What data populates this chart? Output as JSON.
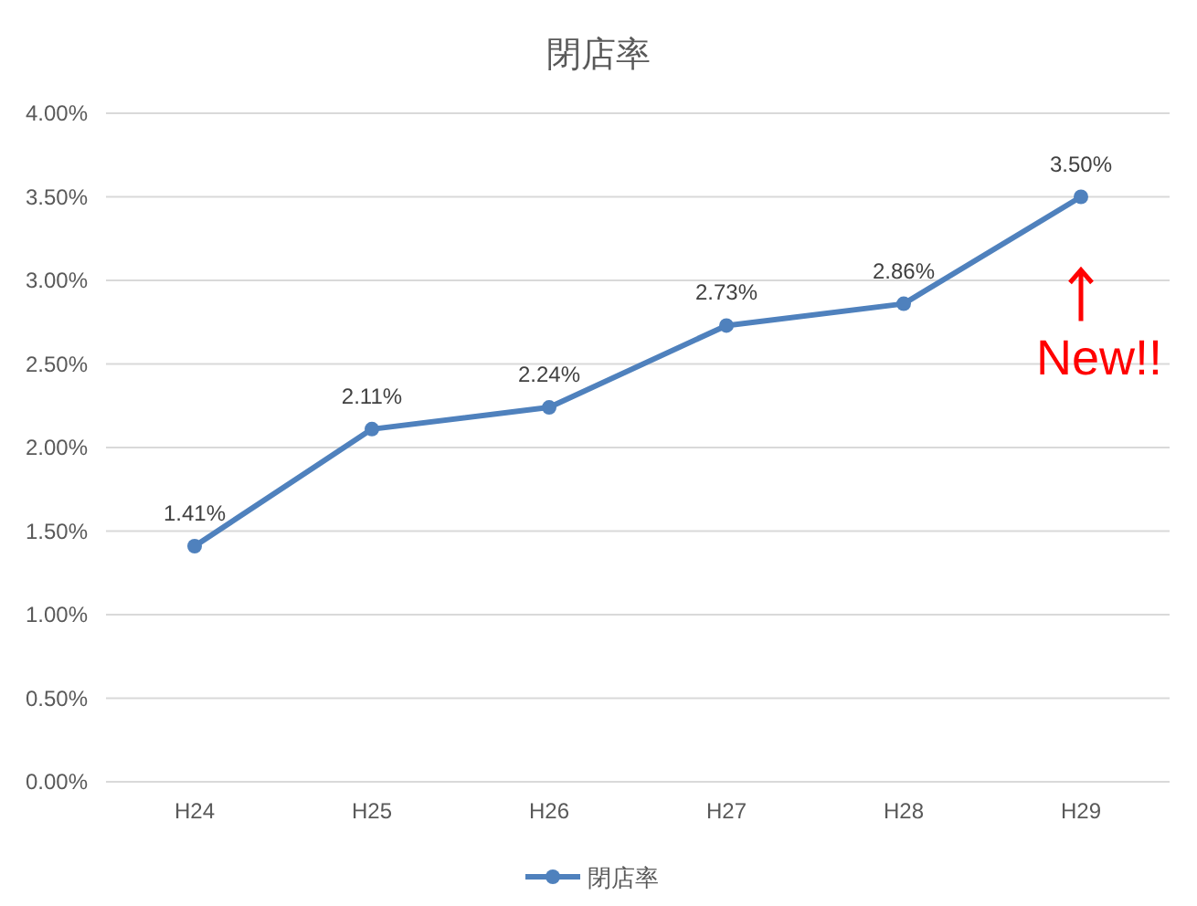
{
  "chart_data": {
    "type": "line",
    "title": "閉店率",
    "categories": [
      "H24",
      "H25",
      "H26",
      "H27",
      "H28",
      "H29"
    ],
    "series": [
      {
        "name": "閉店率",
        "color": "#4f81bd",
        "values": [
          1.41,
          2.11,
          2.24,
          2.73,
          2.86,
          3.5
        ],
        "value_labels": [
          "1.41%",
          "2.11%",
          "2.24%",
          "2.73%",
          "2.86%",
          "3.50%"
        ]
      }
    ],
    "ylim": [
      0,
      4
    ],
    "yticks": [
      {
        "value": 0,
        "label": "0.00%"
      },
      {
        "value": 0.5,
        "label": "0.50%"
      },
      {
        "value": 1,
        "label": "1.00%"
      },
      {
        "value": 1.5,
        "label": "1.50%"
      },
      {
        "value": 2,
        "label": "2.00%"
      },
      {
        "value": 2.5,
        "label": "2.50%"
      },
      {
        "value": 3,
        "label": "3.00%"
      },
      {
        "value": 3.5,
        "label": "3.50%"
      },
      {
        "value": 4,
        "label": "4.00%"
      }
    ],
    "grid": "y",
    "legend": "bottom",
    "marker": "circle",
    "line_style": "solid",
    "annotations": [
      {
        "text": "New!!",
        "x": "H29",
        "y": 3.5
      }
    ]
  }
}
